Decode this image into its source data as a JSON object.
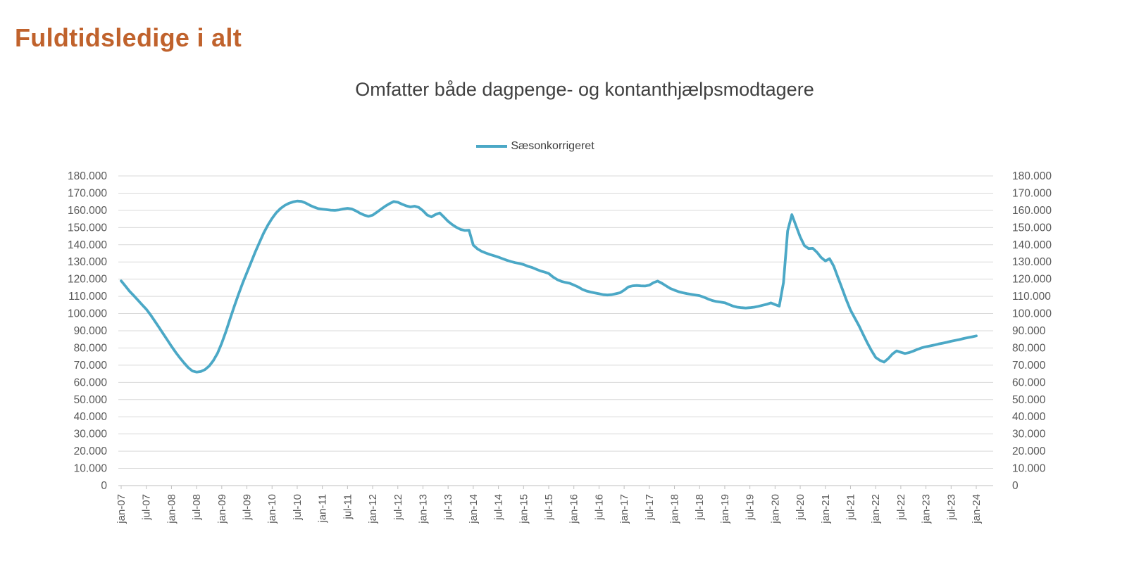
{
  "header": {
    "title": "Fuldtidsledige i alt"
  },
  "colors": {
    "title_accent": "#C0622C",
    "chart_title_text": "#404040",
    "axis_text": "#595959",
    "grid": "#D9D9D9",
    "axis_line": "#BFBFBF",
    "series_line": "#4BA8C6"
  },
  "chart_data": {
    "type": "line",
    "title": "Omfatter både dagpenge- og kontanthjælpsmodtagere",
    "legend_position": "top-center",
    "grid": "horizontal",
    "y_axis_sides": "both",
    "ylim": [
      0,
      180000
    ],
    "y_tick_step": 10000,
    "y_tick_labels": [
      "0",
      "10.000",
      "20.000",
      "30.000",
      "40.000",
      "50.000",
      "60.000",
      "70.000",
      "80.000",
      "90.000",
      "100.000",
      "110.000",
      "120.000",
      "130.000",
      "140.000",
      "150.000",
      "160.000",
      "170.000",
      "180.000"
    ],
    "x_tick_every_months": 6,
    "x_start": "jan-07",
    "x_end": "jan-24",
    "x_tick_labels": [
      "jan-07",
      "jul-07",
      "jan-08",
      "jul-08",
      "jan-09",
      "jul-09",
      "jan-10",
      "jul-10",
      "jan-11",
      "jul-11",
      "jan-12",
      "jul-12",
      "jan-13",
      "jul-13",
      "jan-14",
      "jul-14",
      "jan-15",
      "jul-15",
      "jan-16",
      "jul-16",
      "jan-17",
      "jul-17",
      "jan-18",
      "jul-18",
      "jan-19",
      "jul-19",
      "jan-20",
      "jul-20",
      "jan-21",
      "jul-21",
      "jan-22",
      "jul-22",
      "jan-23",
      "jul-23",
      "jan-24"
    ],
    "series": [
      {
        "name": "Sæsonkorrigeret",
        "color": "#4BA8C6",
        "frequency": "monthly",
        "values": [
          119000,
          116000,
          113000,
          110400,
          107800,
          105100,
          102500,
          99300,
          95700,
          92100,
          88400,
          84700,
          81000,
          77500,
          74300,
          71300,
          68600,
          66600,
          66000,
          66300,
          67400,
          69500,
          72700,
          77000,
          82800,
          89600,
          97000,
          104300,
          111200,
          117800,
          123800,
          129800,
          135800,
          141400,
          146800,
          151400,
          155300,
          158600,
          161000,
          162800,
          164100,
          164900,
          165400,
          165200,
          164300,
          163000,
          161900,
          161000,
          160700,
          160400,
          160100,
          160000,
          160300,
          160800,
          161200,
          160800,
          159700,
          158300,
          157200,
          156500,
          157200,
          158900,
          160700,
          162400,
          163900,
          165100,
          164700,
          163600,
          162600,
          162000,
          162400,
          161700,
          159800,
          157300,
          156200,
          157600,
          158500,
          156100,
          153600,
          151700,
          150100,
          148900,
          148300,
          148400,
          139800,
          137600,
          136200,
          135200,
          134300,
          133600,
          132800,
          131900,
          131000,
          130200,
          129600,
          129100,
          128500,
          127500,
          126800,
          125800,
          124800,
          124100,
          123300,
          121300,
          119800,
          118700,
          118100,
          117600,
          116600,
          115500,
          114100,
          113100,
          112500,
          112000,
          111500,
          111000,
          110800,
          111000,
          111500,
          112100,
          113600,
          115500,
          116100,
          116300,
          116100,
          116000,
          116500,
          118000,
          118900,
          117600,
          116100,
          114600,
          113600,
          112700,
          112100,
          111600,
          111200,
          110800,
          110400,
          109500,
          108500,
          107600,
          107000,
          106700,
          106300,
          105300,
          104300,
          103700,
          103400,
          103200,
          103400,
          103700,
          104200,
          104800,
          105400,
          106200,
          105200,
          104300,
          118000,
          148000,
          157500,
          151000,
          144500,
          139500,
          137800,
          137900,
          135600,
          132600,
          130600,
          131900,
          127500,
          121000,
          114500,
          108000,
          102000,
          97500,
          93000,
          88000,
          83000,
          78500,
          74500,
          72800,
          71800,
          73800,
          76500,
          78300,
          77500,
          76800,
          77300,
          78200,
          79200,
          80100,
          80700,
          81200,
          81700,
          82300,
          82800,
          83300,
          83900,
          84400,
          84900,
          85500,
          86000,
          86500,
          87000
        ]
      }
    ]
  }
}
